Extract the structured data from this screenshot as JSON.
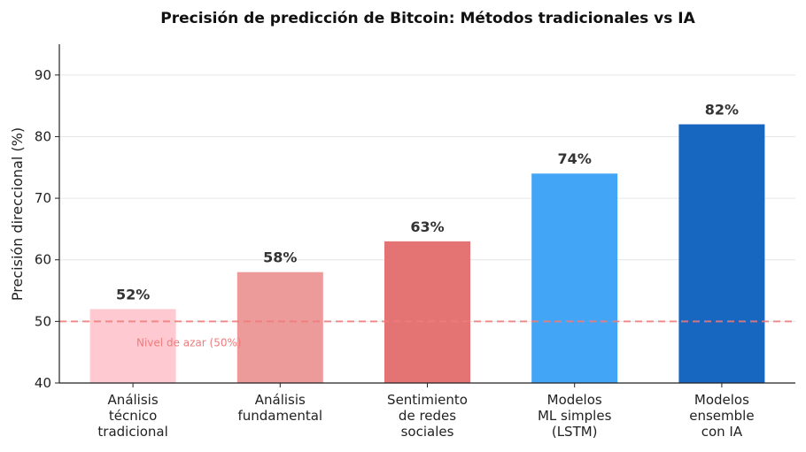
{
  "chart_data": {
    "type": "bar",
    "title": "Precisión de predicción de Bitcoin: Métodos tradicionales vs IA",
    "xlabel": "",
    "ylabel": "Precisión direccional (%)",
    "ylim": [
      40,
      95
    ],
    "yticks": [
      40,
      50,
      60,
      70,
      80,
      90
    ],
    "grid": "horizontal",
    "categories": [
      [
        "Análisis",
        "técnico",
        "tradicional"
      ],
      [
        "Análisis",
        "fundamental"
      ],
      [
        "Sentimiento",
        "de redes",
        "sociales"
      ],
      [
        "Modelos",
        "ML simples",
        "(LSTM)"
      ],
      [
        "Modelos",
        "ensemble",
        "con IA"
      ]
    ],
    "values": [
      52,
      58,
      63,
      74,
      82
    ],
    "value_labels": [
      "52%",
      "58%",
      "63%",
      "74%",
      "82%"
    ],
    "bar_colors": [
      "#ffc9d1",
      "#ec9a9a",
      "#e47373",
      "#43a5f5",
      "#1766c0"
    ],
    "reference_line": {
      "y": 50,
      "label": "Nivel de azar (50%)",
      "color": "#ef7c7c"
    }
  }
}
